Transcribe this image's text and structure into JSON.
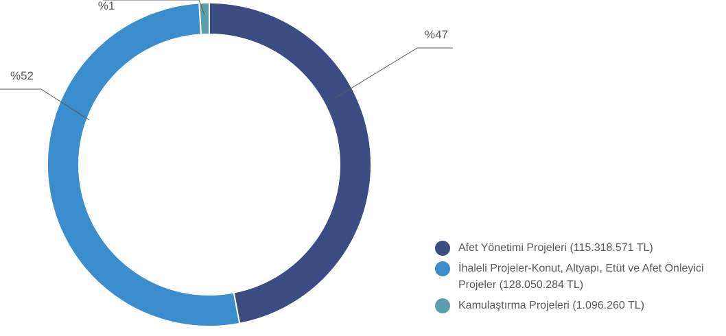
{
  "chart_data": {
    "type": "pie",
    "donut": true,
    "categories": [
      "Afet Yönetimi Projeleri (115.318.571 TL)",
      "İhaleli Projeler-Konut, Altyapı, Etüt ve Afet Önleyici Projeler (128.050.284 TL)",
      "Kamulaştırma Projeleri (1.096.260 TL)"
    ],
    "values": [
      47,
      52,
      1
    ],
    "value_labels": [
      "%47",
      "%52",
      "%1"
    ],
    "colors": [
      "#3a4c81",
      "#3a8ecd",
      "#5a9fab"
    ]
  }
}
